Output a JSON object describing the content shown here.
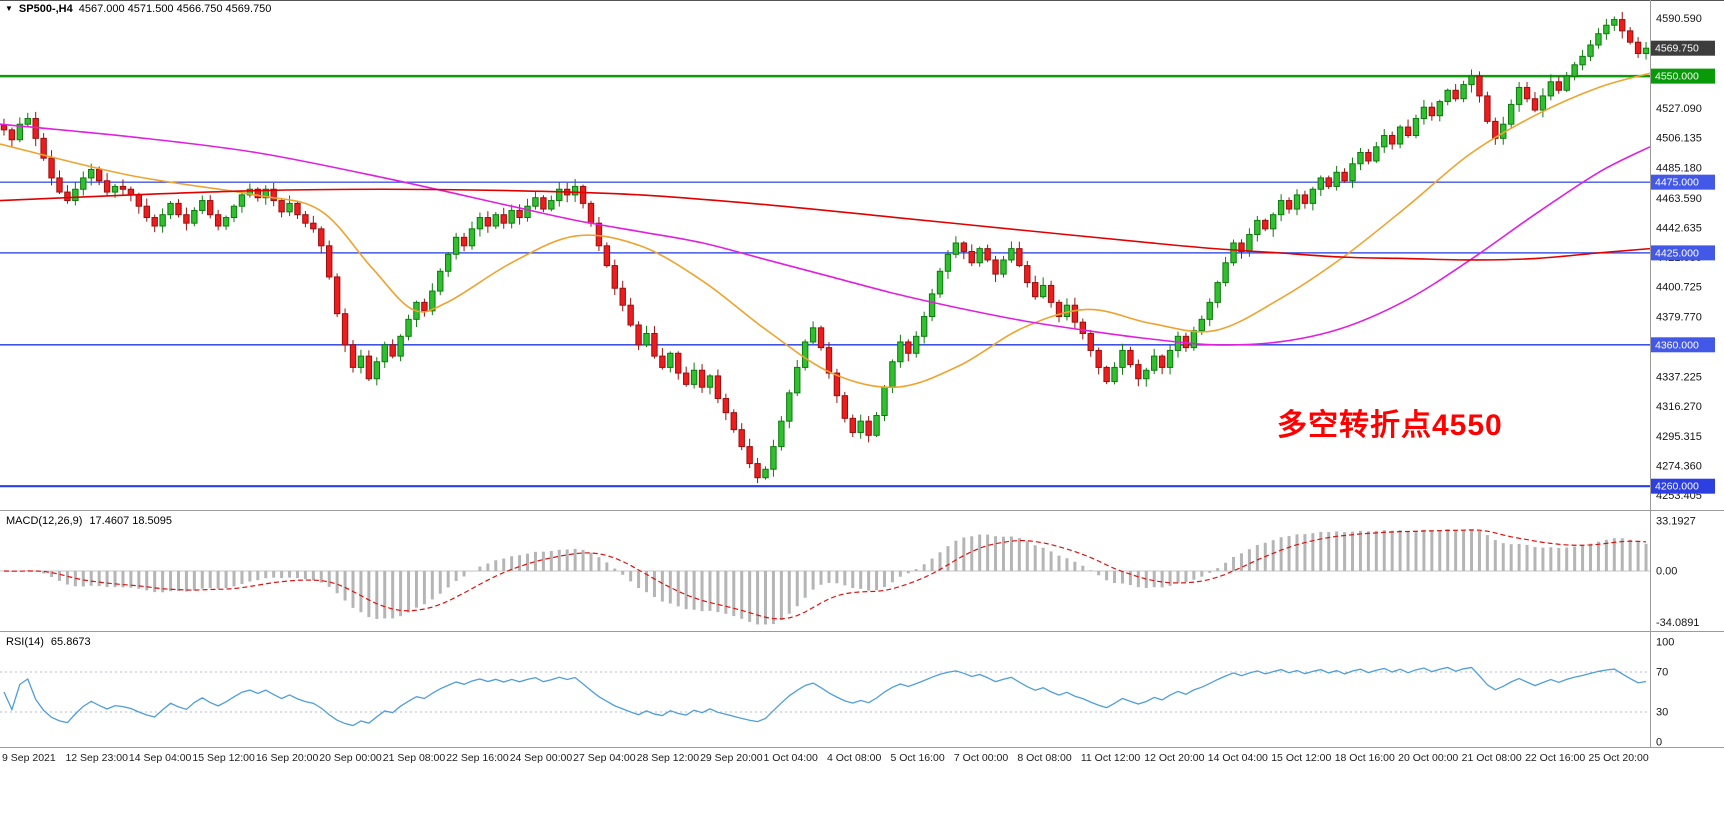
{
  "header": {
    "dropdown_icon": "▼",
    "symbol_period": "SP500-,H4",
    "ohlc": "4567.000 4571.500 4566.750 4569.750"
  },
  "annotation": {
    "text": "多空转折点4550",
    "color": "#ff0000"
  },
  "price_axis": {
    "labels": [
      {
        "text": "4590.590",
        "price": 4590.59
      },
      {
        "text": "4527.090",
        "price": 4527.09
      },
      {
        "text": "4506.135",
        "price": 4506.135
      },
      {
        "text": "4485.180",
        "price": 4485.18
      },
      {
        "text": "4463.590",
        "price": 4463.59
      },
      {
        "text": "4442.635",
        "price": 4442.635
      },
      {
        "text": "4421.680",
        "price": 4421.68
      },
      {
        "text": "4400.725",
        "price": 4400.725
      },
      {
        "text": "4379.770",
        "price": 4379.77
      },
      {
        "text": "4337.225",
        "price": 4337.225
      },
      {
        "text": "4316.270",
        "price": 4316.27
      },
      {
        "text": "4295.315",
        "price": 4295.315
      },
      {
        "text": "4274.360",
        "price": 4274.36
      },
      {
        "text": "4253.405",
        "price": 4253.405
      }
    ],
    "markers": [
      {
        "text": "4569.750",
        "price": 4569.75,
        "bg": "#3d3d3d"
      },
      {
        "text": "4550.000",
        "price": 4550.0,
        "bg": "#089a08"
      },
      {
        "text": "4475.000",
        "price": 4475.0,
        "bg": "#4358e6"
      },
      {
        "text": "4425.000",
        "price": 4425.0,
        "bg": "#4358e6"
      },
      {
        "text": "4360.000",
        "price": 4360.0,
        "bg": "#4358e6"
      },
      {
        "text": "4260.000",
        "price": 4260.0,
        "bg": "#2d3fe0"
      }
    ]
  },
  "chart_data": [
    {
      "type": "candlestick",
      "symbol": "SP500-",
      "timeframe": "H4",
      "open": 4567.0,
      "high": 4571.5,
      "low": 4566.75,
      "close": 4569.75,
      "ylim": [
        4246,
        4601
      ],
      "first_open": 4515,
      "up_color": "#2fbf2f",
      "up_border": "#0e7a0e",
      "down_color": "#ee1c1c",
      "down_border": "#991010",
      "closes": [
        4512,
        4505,
        4516,
        4520,
        4506,
        4492,
        4478,
        4468,
        4462,
        4470,
        4478,
        4484,
        4476,
        4468,
        4472,
        4470,
        4466,
        4458,
        4450,
        4444,
        4452,
        4460,
        4452,
        4446,
        4455,
        4462,
        4452,
        4444,
        4450,
        4458,
        4466,
        4470,
        4464,
        4470,
        4462,
        4454,
        4460,
        4452,
        4446,
        4442,
        4430,
        4408,
        4382,
        4360,
        4344,
        4352,
        4336,
        4348,
        4360,
        4352,
        4366,
        4378,
        4390,
        4384,
        4398,
        4412,
        4424,
        4436,
        4430,
        4442,
        4450,
        4444,
        4452,
        4446,
        4455,
        4450,
        4458,
        4464,
        4456,
        4462,
        4470,
        4466,
        4472,
        4460,
        4446,
        4430,
        4416,
        4400,
        4388,
        4374,
        4360,
        4368,
        4352,
        4344,
        4354,
        4340,
        4332,
        4342,
        4330,
        4338,
        4322,
        4312,
        4300,
        4288,
        4276,
        4266,
        4272,
        4288,
        4306,
        4326,
        4344,
        4362,
        4372,
        4358,
        4340,
        4324,
        4308,
        4298,
        4306,
        4296,
        4310,
        4330,
        4348,
        4362,
        4354,
        4366,
        4380,
        4396,
        4412,
        4424,
        4432,
        4426,
        4418,
        4428,
        4420,
        4410,
        4420,
        4428,
        4416,
        4404,
        4394,
        4402,
        4390,
        4380,
        4388,
        4376,
        4368,
        4356,
        4344,
        4334,
        4344,
        4356,
        4346,
        4336,
        4342,
        4352,
        4344,
        4356,
        4366,
        4358,
        4370,
        4378,
        4390,
        4404,
        4418,
        4432,
        4426,
        4438,
        4448,
        4442,
        4452,
        4462,
        4456,
        4466,
        4460,
        4470,
        4478,
        4472,
        4482,
        4476,
        4488,
        4496,
        4490,
        4500,
        4508,
        4502,
        4514,
        4508,
        4520,
        4528,
        4522,
        4532,
        4540,
        4534,
        4544,
        4550,
        4536,
        4518,
        4506,
        4516,
        4530,
        4542,
        4534,
        4526,
        4536,
        4546,
        4540,
        4550,
        4558,
        4564,
        4572,
        4580,
        4586,
        4590,
        4582,
        4574,
        4566,
        4569.75
      ],
      "x_labels": [
        "9 Sep 2021",
        "12 Sep 23:00",
        "14 Sep 04:00",
        "15 Sep 12:00",
        "16 Sep 20:00",
        "20 Sep 00:00",
        "21 Sep 08:00",
        "22 Sep 16:00",
        "24 Sep 00:00",
        "27 Sep 04:00",
        "28 Sep 12:00",
        "29 Sep 20:00",
        "1 Oct 04:00",
        "4 Oct 08:00",
        "5 Oct 16:00",
        "7 Oct 00:00",
        "8 Oct 08:00",
        "11 Oct 12:00",
        "12 Oct 20:00",
        "14 Oct 04:00",
        "15 Oct 12:00",
        "18 Oct 16:00",
        "20 Oct 00:00",
        "21 Oct 08:00",
        "22 Oct 16:00",
        "25 Oct 20:00"
      ],
      "levels": [
        {
          "price": 4550,
          "color": "#0a9a0a",
          "width": 2.4
        },
        {
          "price": 4475,
          "color": "#4358e6",
          "width": 1.4
        },
        {
          "price": 4425,
          "color": "#4358e6",
          "width": 1.4
        },
        {
          "price": 4360,
          "color": "#4054e4",
          "width": 1.7
        },
        {
          "price": 4260,
          "color": "#2d3fe0",
          "width": 2.2
        }
      ],
      "moving_averages": [
        {
          "name": "ma-fast-orange",
          "color": "#efa32f",
          "points": [
            [
              0,
              4502
            ],
            [
              0.078,
              4480
            ],
            [
              0.155,
              4466
            ],
            [
              0.194,
              4455
            ],
            [
              0.225,
              4415
            ],
            [
              0.25,
              4385
            ],
            [
              0.271,
              4390
            ],
            [
              0.31,
              4418
            ],
            [
              0.349,
              4437
            ],
            [
              0.388,
              4430
            ],
            [
              0.426,
              4405
            ],
            [
              0.465,
              4370
            ],
            [
              0.504,
              4340
            ],
            [
              0.543,
              4330
            ],
            [
              0.581,
              4345
            ],
            [
              0.62,
              4372
            ],
            [
              0.659,
              4385
            ],
            [
              0.698,
              4375
            ],
            [
              0.736,
              4370
            ],
            [
              0.775,
              4392
            ],
            [
              0.814,
              4422
            ],
            [
              0.853,
              4458
            ],
            [
              0.891,
              4495
            ],
            [
              0.93,
              4522
            ],
            [
              0.969,
              4542
            ],
            [
              1,
              4552
            ]
          ]
        },
        {
          "name": "ma-mid-magenta",
          "color": "#e020e0",
          "points": [
            [
              0,
              4516
            ],
            [
              0.08,
              4507
            ],
            [
              0.155,
              4496
            ],
            [
              0.233,
              4478
            ],
            [
              0.31,
              4458
            ],
            [
              0.349,
              4448
            ],
            [
              0.388,
              4440
            ],
            [
              0.426,
              4432
            ],
            [
              0.465,
              4420
            ],
            [
              0.504,
              4408
            ],
            [
              0.543,
              4396
            ],
            [
              0.581,
              4386
            ],
            [
              0.62,
              4377
            ],
            [
              0.659,
              4370
            ],
            [
              0.698,
              4364
            ],
            [
              0.736,
              4360
            ],
            [
              0.775,
              4362
            ],
            [
              0.814,
              4372
            ],
            [
              0.853,
              4392
            ],
            [
              0.891,
              4420
            ],
            [
              0.93,
              4452
            ],
            [
              0.969,
              4482
            ],
            [
              1,
              4500
            ]
          ]
        },
        {
          "name": "ma-slow-red",
          "color": "#e00000",
          "points": [
            [
              0,
              4462
            ],
            [
              0.08,
              4466
            ],
            [
              0.155,
              4469
            ],
            [
              0.233,
              4470
            ],
            [
              0.31,
              4469
            ],
            [
              0.388,
              4466
            ],
            [
              0.465,
              4459
            ],
            [
              0.543,
              4450
            ],
            [
              0.62,
              4441
            ],
            [
              0.698,
              4432
            ],
            [
              0.736,
              4428
            ],
            [
              0.775,
              4425
            ],
            [
              0.814,
              4422
            ],
            [
              0.853,
              4421
            ],
            [
              0.891,
              4420
            ],
            [
              0.93,
              4421
            ],
            [
              0.969,
              4425
            ],
            [
              1,
              4428
            ]
          ]
        }
      ]
    },
    {
      "type": "bar",
      "name": "MACD(12,26,9)",
      "params": [
        12,
        26,
        9
      ],
      "values_text": "17.4607 18.5095",
      "current_macd": 17.4607,
      "current_signal": 18.5095,
      "ylim": [
        -34.0891,
        33.1927
      ],
      "axis_labels": [
        {
          "text": "33.1927",
          "value": 33.1927
        },
        {
          "text": "0.00",
          "value": 0
        },
        {
          "text": "-34.0891",
          "value": -34.0891
        }
      ],
      "histogram_color": "#b5b5b5",
      "signal_color": "#dd1111",
      "source": "histogram = EMA12-EMA26 of candlestick closes, signal = EMA9 of histogram"
    },
    {
      "type": "line",
      "name": "RSI(14)",
      "period": 14,
      "value_text": "65.8673",
      "current": 65.8673,
      "ylim": [
        0,
        100
      ],
      "levels": [
        70,
        30
      ],
      "axis_labels": [
        {
          "text": "100",
          "value": 100
        },
        {
          "text": "70",
          "value": 70
        },
        {
          "text": "30",
          "value": 30
        },
        {
          "text": "0",
          "value": 0
        }
      ],
      "line_color": "#4f9edb",
      "source": "RSI(14) computed from candlestick closes"
    }
  ]
}
